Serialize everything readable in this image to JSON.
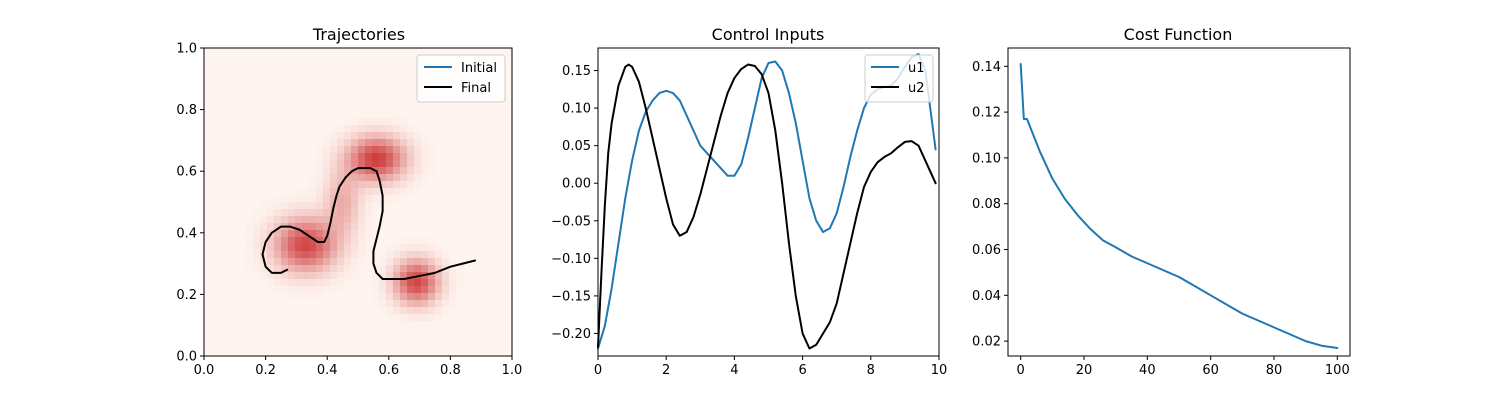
{
  "chart_data": [
    {
      "type": "heatmap",
      "title": "Trajectories",
      "xlim": [
        0,
        1
      ],
      "ylim": [
        0,
        1
      ],
      "xticks": [
        "0.0",
        "0.2",
        "0.4",
        "0.6",
        "0.8",
        "1.0"
      ],
      "yticks": [
        "0.0",
        "0.2",
        "0.4",
        "0.6",
        "0.8",
        "1.0"
      ],
      "grid": false,
      "legend": {
        "placement": "top-right",
        "entries": [
          "Initial",
          "Final"
        ]
      },
      "density_colormap": "Reds",
      "density_centers": [
        {
          "x": 0.33,
          "y": 0.36,
          "sx": 0.07,
          "sy": 0.06,
          "w": 0.85
        },
        {
          "x": 0.56,
          "y": 0.64,
          "sx": 0.065,
          "sy": 0.05,
          "w": 0.9
        },
        {
          "x": 0.69,
          "y": 0.24,
          "sx": 0.05,
          "sy": 0.05,
          "w": 0.85
        },
        {
          "x": 0.45,
          "y": 0.5,
          "sx": 0.04,
          "sy": 0.07,
          "w": 0.35
        }
      ],
      "series": [
        {
          "name": "Initial",
          "color": "#1f77b4",
          "x": [],
          "y": []
        },
        {
          "name": "Final",
          "color": "#000000",
          "x": [
            0.27,
            0.25,
            0.22,
            0.2,
            0.19,
            0.2,
            0.22,
            0.25,
            0.28,
            0.31,
            0.34,
            0.37,
            0.39,
            0.4,
            0.41,
            0.42,
            0.43,
            0.44,
            0.46,
            0.48,
            0.5,
            0.52,
            0.54,
            0.56,
            0.57,
            0.58,
            0.58,
            0.57,
            0.56,
            0.55,
            0.55,
            0.56,
            0.58,
            0.61,
            0.65,
            0.7,
            0.75,
            0.8,
            0.84,
            0.88
          ],
          "y": [
            0.28,
            0.27,
            0.27,
            0.29,
            0.33,
            0.37,
            0.4,
            0.42,
            0.42,
            0.41,
            0.39,
            0.37,
            0.37,
            0.39,
            0.43,
            0.48,
            0.52,
            0.55,
            0.58,
            0.6,
            0.61,
            0.61,
            0.61,
            0.6,
            0.57,
            0.52,
            0.47,
            0.42,
            0.38,
            0.34,
            0.3,
            0.27,
            0.25,
            0.25,
            0.25,
            0.26,
            0.27,
            0.29,
            0.3,
            0.31
          ]
        }
      ]
    },
    {
      "type": "line",
      "title": "Control Inputs",
      "xlim": [
        0,
        10
      ],
      "ylim": [
        -0.23,
        0.18
      ],
      "xticks": [
        "0",
        "2",
        "4",
        "6",
        "8",
        "10"
      ],
      "yticks": [
        "−0.20",
        "−0.15",
        "−0.10",
        "−0.05",
        "0.00",
        "0.05",
        "0.10",
        "0.15"
      ],
      "grid": false,
      "legend": {
        "placement": "top-right",
        "entries": [
          "u1",
          "u2"
        ]
      },
      "series": [
        {
          "name": "u1",
          "color": "#1f77b4",
          "x": [
            0,
            0.2,
            0.4,
            0.6,
            0.8,
            1.0,
            1.2,
            1.4,
            1.6,
            1.8,
            2.0,
            2.2,
            2.4,
            2.6,
            2.8,
            3.0,
            3.2,
            3.4,
            3.6,
            3.8,
            4.0,
            4.2,
            4.4,
            4.6,
            4.8,
            5.0,
            5.2,
            5.4,
            5.6,
            5.8,
            6.0,
            6.2,
            6.4,
            6.6,
            6.8,
            7.0,
            7.2,
            7.4,
            7.6,
            7.8,
            8.0,
            8.2,
            8.4,
            8.6,
            8.8,
            9.0,
            9.2,
            9.4,
            9.6,
            9.8,
            9.9
          ],
          "y": [
            -0.22,
            -0.19,
            -0.14,
            -0.08,
            -0.02,
            0.03,
            0.07,
            0.095,
            0.11,
            0.12,
            0.123,
            0.12,
            0.11,
            0.09,
            0.07,
            0.05,
            0.04,
            0.03,
            0.02,
            0.01,
            0.01,
            0.025,
            0.06,
            0.1,
            0.14,
            0.16,
            0.162,
            0.15,
            0.12,
            0.08,
            0.03,
            -0.02,
            -0.05,
            -0.065,
            -0.06,
            -0.04,
            -0.005,
            0.035,
            0.07,
            0.1,
            0.118,
            0.125,
            0.128,
            0.13,
            0.14,
            0.155,
            0.168,
            0.172,
            0.15,
            0.08,
            0.045
          ]
        },
        {
          "name": "u2",
          "color": "#000000",
          "x": [
            0,
            0.1,
            0.2,
            0.3,
            0.4,
            0.6,
            0.8,
            0.9,
            1.0,
            1.2,
            1.4,
            1.6,
            1.8,
            2.0,
            2.2,
            2.4,
            2.6,
            2.8,
            3.0,
            3.2,
            3.4,
            3.6,
            3.8,
            4.0,
            4.2,
            4.4,
            4.6,
            4.8,
            5.0,
            5.2,
            5.4,
            5.6,
            5.8,
            6.0,
            6.2,
            6.4,
            6.6,
            6.8,
            7.0,
            7.2,
            7.4,
            7.6,
            7.8,
            8.0,
            8.2,
            8.4,
            8.6,
            8.8,
            9.0,
            9.2,
            9.4,
            9.6,
            9.8,
            9.9
          ],
          "y": [
            -0.218,
            -0.12,
            -0.03,
            0.04,
            0.08,
            0.13,
            0.155,
            0.158,
            0.155,
            0.135,
            0.1,
            0.06,
            0.02,
            -0.02,
            -0.055,
            -0.07,
            -0.065,
            -0.045,
            -0.015,
            0.02,
            0.055,
            0.09,
            0.12,
            0.14,
            0.152,
            0.158,
            0.156,
            0.145,
            0.12,
            0.07,
            0.0,
            -0.08,
            -0.15,
            -0.2,
            -0.22,
            -0.215,
            -0.2,
            -0.185,
            -0.16,
            -0.12,
            -0.08,
            -0.04,
            -0.005,
            0.015,
            0.028,
            0.035,
            0.04,
            0.048,
            0.055,
            0.056,
            0.05,
            0.03,
            0.01,
            0.0
          ]
        }
      ]
    },
    {
      "type": "line",
      "title": "Cost Function",
      "xlim": [
        -4,
        104
      ],
      "ylim": [
        0.0135,
        0.148
      ],
      "xticks": [
        "0",
        "20",
        "40",
        "60",
        "80",
        "100"
      ],
      "yticks": [
        "0.02",
        "0.04",
        "0.06",
        "0.08",
        "0.10",
        "0.12",
        "0.14"
      ],
      "grid": false,
      "series": [
        {
          "name": "",
          "color": "#1f77b4",
          "x": [
            0,
            1,
            2,
            4,
            6,
            8,
            10,
            14,
            18,
            22,
            26,
            30,
            35,
            40,
            45,
            50,
            55,
            60,
            65,
            70,
            75,
            80,
            85,
            90,
            95,
            100
          ],
          "y": [
            0.141,
            0.117,
            0.117,
            0.11,
            0.103,
            0.097,
            0.091,
            0.082,
            0.075,
            0.069,
            0.064,
            0.061,
            0.057,
            0.054,
            0.051,
            0.048,
            0.044,
            0.04,
            0.036,
            0.032,
            0.029,
            0.026,
            0.023,
            0.02,
            0.018,
            0.017
          ]
        }
      ]
    }
  ]
}
